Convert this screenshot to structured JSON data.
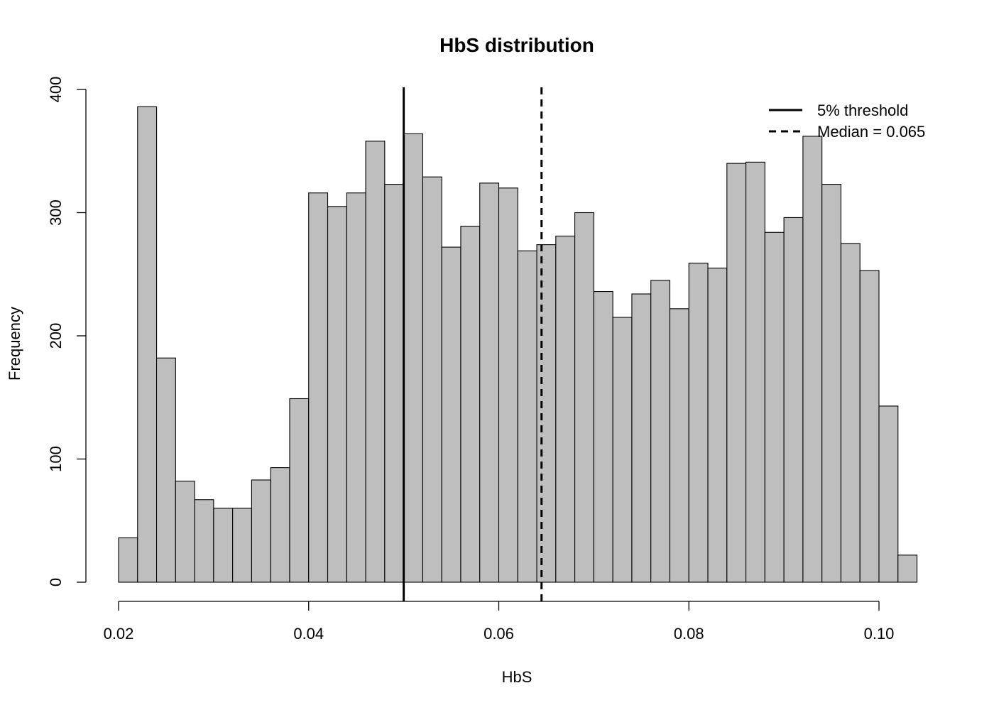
{
  "chart_data": {
    "type": "bar",
    "title": "HbS distribution",
    "xlabel": "HbS",
    "ylabel": "Frequency",
    "bin_width": 0.002,
    "bin_start": 0.02,
    "bin_counts": [
      36,
      386,
      182,
      82,
      67,
      60,
      60,
      83,
      93,
      149,
      316,
      305,
      316,
      358,
      323,
      364,
      329,
      272,
      289,
      324,
      320,
      269,
      274,
      281,
      300,
      236,
      215,
      234,
      245,
      222,
      259,
      255,
      340,
      341,
      284,
      296,
      362,
      323,
      275,
      253,
      143,
      22
    ],
    "xlim": [
      0.02,
      0.1
    ],
    "ylim": [
      0,
      400
    ],
    "x_ticks": [
      0.02,
      0.04,
      0.06,
      0.08,
      0.1
    ],
    "x_tick_labels": [
      "0.02",
      "0.04",
      "0.06",
      "0.08",
      "0.10"
    ],
    "y_ticks": [
      0,
      100,
      200,
      300,
      400
    ],
    "y_tick_labels": [
      "0",
      "100",
      "200",
      "300",
      "400"
    ],
    "bar_fill": "#bebebe",
    "bar_edge": "#000000",
    "reference_lines": [
      {
        "x": 0.05,
        "style": "solid",
        "label": "5% threshold"
      },
      {
        "x": 0.0645,
        "style": "dashed",
        "label": "Median = 0.065"
      }
    ],
    "legend_position": "top-right",
    "grid": false
  }
}
